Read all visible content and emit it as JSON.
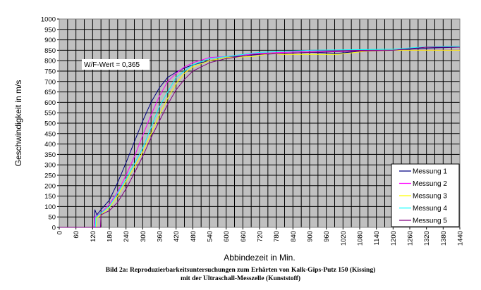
{
  "chart_data": {
    "type": "line",
    "title": "",
    "xlabel": "Abbindezeit in Min.",
    "ylabel": "Geschwindigkeit in m/s",
    "xlim": [
      0,
      1440
    ],
    "ylim": [
      0,
      1000
    ],
    "xticks": [
      0,
      60,
      120,
      180,
      240,
      300,
      360,
      420,
      480,
      540,
      600,
      660,
      720,
      780,
      840,
      900,
      960,
      1020,
      1080,
      1140,
      1200,
      1260,
      1320,
      1380,
      1440
    ],
    "yticks": [
      0,
      50,
      100,
      150,
      200,
      250,
      300,
      350,
      400,
      450,
      500,
      550,
      600,
      650,
      700,
      750,
      800,
      850,
      900,
      950,
      1000
    ],
    "grid": {
      "x_step": 30,
      "y_step": 50,
      "on": true
    },
    "plot_background": "#c0c0c0",
    "legend_position": "bottom-right",
    "annotation": "W/F-Wert = 0,365",
    "series": [
      {
        "name": "Messung 1",
        "color": "#000080",
        "points": [
          [
            0,
            0
          ],
          [
            125,
            0
          ],
          [
            128,
            85
          ],
          [
            135,
            60
          ],
          [
            150,
            85
          ],
          [
            180,
            130
          ],
          [
            210,
            215
          ],
          [
            240,
            310
          ],
          [
            270,
            410
          ],
          [
            300,
            510
          ],
          [
            330,
            600
          ],
          [
            360,
            670
          ],
          [
            390,
            720
          ],
          [
            420,
            745
          ],
          [
            450,
            765
          ],
          [
            480,
            780
          ],
          [
            540,
            800
          ],
          [
            600,
            815
          ],
          [
            720,
            830
          ],
          [
            900,
            840
          ],
          [
            1000,
            835
          ],
          [
            1080,
            845
          ],
          [
            1200,
            850
          ],
          [
            1320,
            860
          ],
          [
            1440,
            865
          ]
        ]
      },
      {
        "name": "Messung 2",
        "color": "#ff00ff",
        "points": [
          [
            0,
            0
          ],
          [
            125,
            0
          ],
          [
            128,
            50
          ],
          [
            150,
            70
          ],
          [
            180,
            110
          ],
          [
            210,
            170
          ],
          [
            240,
            250
          ],
          [
            270,
            340
          ],
          [
            300,
            440
          ],
          [
            330,
            540
          ],
          [
            360,
            630
          ],
          [
            390,
            700
          ],
          [
            420,
            740
          ],
          [
            450,
            770
          ],
          [
            480,
            790
          ],
          [
            540,
            815
          ],
          [
            600,
            820
          ],
          [
            720,
            835
          ],
          [
            900,
            845
          ],
          [
            1200,
            850
          ],
          [
            1440,
            850
          ]
        ]
      },
      {
        "name": "Messung 3",
        "color": "#ffff00",
        "points": [
          [
            0,
            0
          ],
          [
            132,
            0
          ],
          [
            134,
            45
          ],
          [
            150,
            60
          ],
          [
            180,
            95
          ],
          [
            210,
            150
          ],
          [
            240,
            220
          ],
          [
            270,
            290
          ],
          [
            300,
            360
          ],
          [
            330,
            450
          ],
          [
            360,
            540
          ],
          [
            390,
            620
          ],
          [
            420,
            690
          ],
          [
            450,
            740
          ],
          [
            480,
            770
          ],
          [
            540,
            800
          ],
          [
            600,
            815
          ],
          [
            700,
            820
          ],
          [
            760,
            835
          ],
          [
            800,
            830
          ],
          [
            1000,
            830
          ],
          [
            1100,
            845
          ],
          [
            1200,
            850
          ],
          [
            1440,
            850
          ]
        ]
      },
      {
        "name": "Messung 4",
        "color": "#00ffff",
        "points": [
          [
            0,
            0
          ],
          [
            130,
            0
          ],
          [
            132,
            50
          ],
          [
            180,
            100
          ],
          [
            240,
            230
          ],
          [
            300,
            380
          ],
          [
            360,
            580
          ],
          [
            420,
            720
          ],
          [
            480,
            780
          ],
          [
            540,
            810
          ],
          [
            720,
            840
          ],
          [
            900,
            850
          ],
          [
            1200,
            855
          ],
          [
            1300,
            865
          ],
          [
            1440,
            870
          ]
        ]
      },
      {
        "name": "Messung 5",
        "color": "#800080",
        "points": [
          [
            0,
            0
          ],
          [
            148,
            0
          ],
          [
            150,
            60
          ],
          [
            180,
            80
          ],
          [
            210,
            120
          ],
          [
            240,
            185
          ],
          [
            270,
            260
          ],
          [
            300,
            340
          ],
          [
            330,
            430
          ],
          [
            360,
            510
          ],
          [
            390,
            590
          ],
          [
            420,
            660
          ],
          [
            450,
            710
          ],
          [
            480,
            750
          ],
          [
            540,
            790
          ],
          [
            600,
            810
          ],
          [
            700,
            830
          ],
          [
            900,
            840
          ],
          [
            1200,
            850
          ],
          [
            1320,
            865
          ],
          [
            1440,
            865
          ]
        ]
      }
    ]
  },
  "caption": {
    "line1": "Bild 2a: Reproduzierbarkeitsuntersuchungen zum Erhärten von Kalk-Gips-Putz 150 (Kissing)",
    "line2": "mit der Ultraschall-Messzelle (Kunststoff)"
  }
}
